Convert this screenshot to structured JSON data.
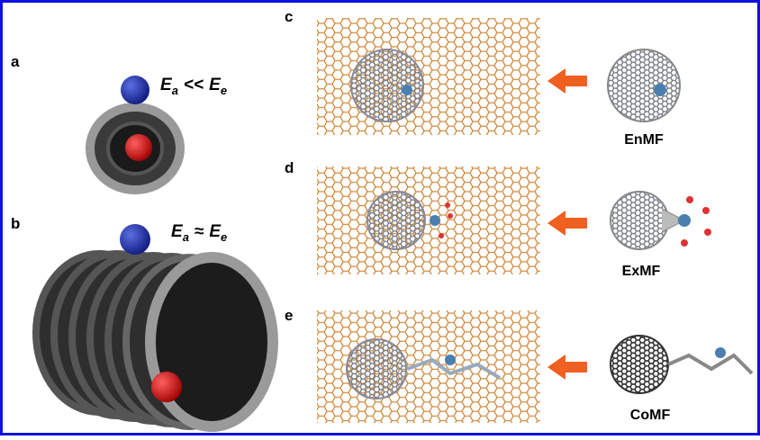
{
  "figure": {
    "panels": [
      {
        "label": "a",
        "equation": {
          "lhs": "E",
          "lhs_sub": "a",
          "relation": "<<",
          "rhs": "E",
          "rhs_sub": "e"
        }
      },
      {
        "label": "b",
        "equation": {
          "lhs": "E",
          "lhs_sub": "a",
          "relation": "≈",
          "rhs": "E",
          "rhs_sub": "e"
        }
      },
      {
        "label": "c",
        "molecule": "EnMF"
      },
      {
        "label": "d",
        "molecule": "ExMF"
      },
      {
        "label": "e",
        "molecule": "CoMF"
      }
    ]
  }
}
